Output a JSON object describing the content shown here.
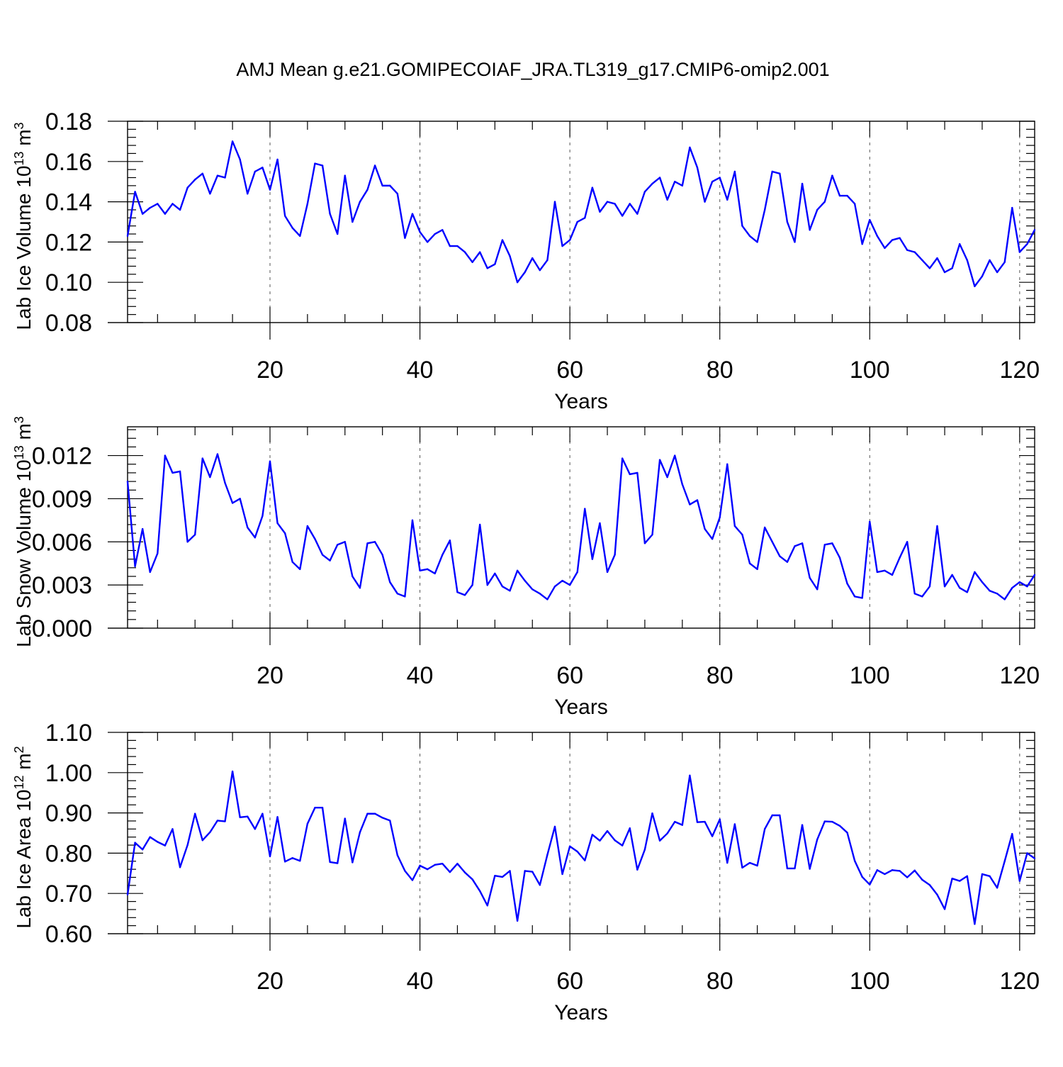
{
  "title": "AMJ Mean g.e21.GOMIPECOIAF_JRA.TL319_g17.CMIP6-omip2.001",
  "chart_data": [
    {
      "type": "line",
      "ylabel_base": "Lab Ice Volume 10",
      "ylabel_exp": "13",
      "ylabel_unit": " m",
      "ylabel_unit_exp": "3",
      "xlabel": "Years",
      "xlim": [
        1,
        122
      ],
      "ylim": [
        0.08,
        0.18
      ],
      "xticks": [
        20,
        40,
        60,
        80,
        100,
        120
      ],
      "yticks": [
        0.08,
        0.1,
        0.12,
        0.14,
        0.16,
        0.18
      ],
      "ytick_labels": [
        "0.08",
        "0.10",
        "0.12",
        "0.14",
        "0.16",
        "0.18"
      ],
      "xgrid": [
        20,
        40,
        60,
        80,
        100,
        120
      ],
      "color": "#0000ff",
      "values": [
        0.123,
        0.145,
        0.134,
        0.137,
        0.139,
        0.134,
        0.139,
        0.136,
        0.147,
        0.151,
        0.154,
        0.144,
        0.153,
        0.152,
        0.17,
        0.161,
        0.144,
        0.155,
        0.157,
        0.146,
        0.161,
        0.133,
        0.127,
        0.123,
        0.139,
        0.159,
        0.158,
        0.134,
        0.124,
        0.153,
        0.13,
        0.14,
        0.146,
        0.158,
        0.148,
        0.148,
        0.144,
        0.122,
        0.134,
        0.125,
        0.12,
        0.124,
        0.126,
        0.118,
        0.118,
        0.115,
        0.11,
        0.115,
        0.107,
        0.109,
        0.121,
        0.113,
        0.1,
        0.105,
        0.112,
        0.106,
        0.111,
        0.14,
        0.118,
        0.121,
        0.13,
        0.132,
        0.147,
        0.135,
        0.14,
        0.139,
        0.133,
        0.139,
        0.134,
        0.145,
        0.149,
        0.152,
        0.141,
        0.15,
        0.148,
        0.167,
        0.157,
        0.14,
        0.15,
        0.152,
        0.141,
        0.155,
        0.128,
        0.123,
        0.12,
        0.136,
        0.155,
        0.154,
        0.13,
        0.12,
        0.149,
        0.126,
        0.136,
        0.14,
        0.153,
        0.143,
        0.143,
        0.139,
        0.119,
        0.131,
        0.123,
        0.117,
        0.121,
        0.122,
        0.116,
        0.115,
        0.111,
        0.107,
        0.112,
        0.105,
        0.107,
        0.119,
        0.111,
        0.098,
        0.103,
        0.111,
        0.105,
        0.11,
        0.137,
        0.115,
        0.119,
        0.126
      ]
    },
    {
      "type": "line",
      "ylabel_base": "Lab Snow Volume 10",
      "ylabel_exp": "13",
      "ylabel_unit": " m",
      "ylabel_unit_exp": "3",
      "xlabel": "Years",
      "xlim": [
        1,
        122
      ],
      "ylim": [
        0.0,
        0.014
      ],
      "xticks": [
        20,
        40,
        60,
        80,
        100,
        120
      ],
      "yticks": [
        0.0,
        0.003,
        0.006,
        0.009,
        0.012
      ],
      "ytick_labels": [
        "0.000",
        "0.003",
        "0.006",
        "0.009",
        "0.012"
      ],
      "xgrid": [
        20,
        40,
        60,
        80,
        100,
        120
      ],
      "color": "#0000ff",
      "values": [
        0.0102,
        0.0043,
        0.0069,
        0.0039,
        0.0052,
        0.012,
        0.0108,
        0.0109,
        0.006,
        0.0065,
        0.0118,
        0.0105,
        0.0121,
        0.0101,
        0.0087,
        0.009,
        0.007,
        0.0063,
        0.0078,
        0.0116,
        0.0073,
        0.0066,
        0.0046,
        0.0041,
        0.0071,
        0.0062,
        0.0051,
        0.0047,
        0.0058,
        0.006,
        0.0036,
        0.0028,
        0.0059,
        0.006,
        0.0051,
        0.0032,
        0.0024,
        0.0022,
        0.0075,
        0.004,
        0.0041,
        0.0038,
        0.0051,
        0.0061,
        0.0025,
        0.0023,
        0.003,
        0.0072,
        0.003,
        0.0038,
        0.0029,
        0.0026,
        0.004,
        0.0033,
        0.0027,
        0.0024,
        0.002,
        0.0029,
        0.0033,
        0.003,
        0.0039,
        0.0083,
        0.0048,
        0.0073,
        0.0039,
        0.0051,
        0.0118,
        0.0107,
        0.0108,
        0.0059,
        0.0065,
        0.0117,
        0.0105,
        0.012,
        0.01,
        0.0086,
        0.0089,
        0.0069,
        0.0062,
        0.0077,
        0.0114,
        0.0071,
        0.0065,
        0.0045,
        0.0041,
        0.007,
        0.006,
        0.005,
        0.0046,
        0.0057,
        0.0059,
        0.0035,
        0.0027,
        0.0058,
        0.0059,
        0.0049,
        0.0031,
        0.0022,
        0.0021,
        0.0074,
        0.0039,
        0.004,
        0.0037,
        0.0049,
        0.006,
        0.0024,
        0.0022,
        0.0029,
        0.0071,
        0.0029,
        0.0037,
        0.0028,
        0.0025,
        0.0039,
        0.0032,
        0.0026,
        0.0024,
        0.002,
        0.0028,
        0.0032,
        0.0029,
        0.0037
      ]
    },
    {
      "type": "line",
      "ylabel_base": "Lab Ice Area 10",
      "ylabel_exp": "12",
      "ylabel_unit": " m",
      "ylabel_unit_exp": "2",
      "xlabel": "Years",
      "xlim": [
        1,
        122
      ],
      "ylim": [
        0.6,
        1.1
      ],
      "xticks": [
        20,
        40,
        60,
        80,
        100,
        120
      ],
      "yticks": [
        0.6,
        0.7,
        0.8,
        0.9,
        1.0,
        1.1
      ],
      "ytick_labels": [
        "0.60",
        "0.70",
        "0.80",
        "0.90",
        "1.00",
        "1.10"
      ],
      "xgrid": [
        20,
        40,
        60,
        80,
        100,
        120
      ],
      "color": "#0000ff",
      "values": [
        0.697,
        0.826,
        0.809,
        0.84,
        0.828,
        0.819,
        0.86,
        0.765,
        0.82,
        0.898,
        0.832,
        0.852,
        0.881,
        0.879,
        1.003,
        0.889,
        0.891,
        0.86,
        0.898,
        0.792,
        0.89,
        0.779,
        0.788,
        0.781,
        0.873,
        0.913,
        0.913,
        0.778,
        0.775,
        0.886,
        0.777,
        0.852,
        0.898,
        0.898,
        0.888,
        0.881,
        0.795,
        0.756,
        0.733,
        0.769,
        0.76,
        0.771,
        0.774,
        0.753,
        0.774,
        0.752,
        0.735,
        0.706,
        0.67,
        0.744,
        0.741,
        0.756,
        0.632,
        0.756,
        0.754,
        0.721,
        0.796,
        0.866,
        0.748,
        0.817,
        0.804,
        0.782,
        0.846,
        0.831,
        0.855,
        0.832,
        0.819,
        0.862,
        0.759,
        0.809,
        0.899,
        0.831,
        0.849,
        0.878,
        0.87,
        0.993,
        0.877,
        0.878,
        0.842,
        0.884,
        0.776,
        0.872,
        0.764,
        0.776,
        0.769,
        0.86,
        0.894,
        0.894,
        0.762,
        0.762,
        0.87,
        0.761,
        0.834,
        0.879,
        0.878,
        0.868,
        0.851,
        0.781,
        0.741,
        0.722,
        0.758,
        0.748,
        0.758,
        0.756,
        0.74,
        0.757,
        0.734,
        0.721,
        0.697,
        0.661,
        0.737,
        0.731,
        0.743,
        0.624,
        0.748,
        0.743,
        0.714,
        0.78,
        0.848,
        0.731,
        0.8,
        0.787
      ]
    }
  ]
}
